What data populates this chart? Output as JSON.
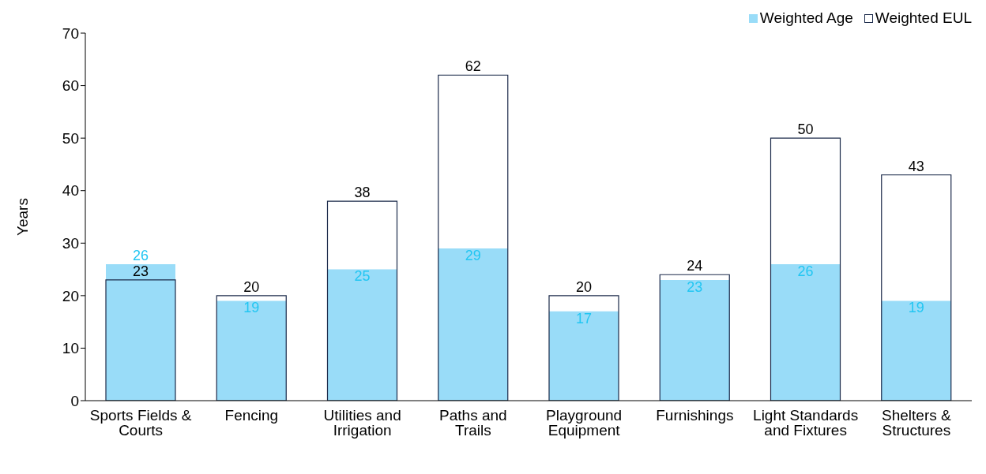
{
  "chart_data": {
    "type": "bar",
    "ylabel": "Years",
    "categories": [
      "Sports Fields & Courts",
      "Fencing",
      "Utilities and Irrigation",
      "Paths and Trails",
      "Playground Equipment",
      "Furnishings",
      "Light Standards and Fixtures",
      "Shelters & Structures"
    ],
    "series": [
      {
        "name": "Weighted Age",
        "color": "#99dcf8",
        "values": [
          26,
          19,
          25,
          29,
          17,
          23,
          26,
          19
        ]
      },
      {
        "name": "Weighted EUL",
        "color": "#1b2a4a",
        "values": [
          23,
          20,
          38,
          62,
          20,
          24,
          50,
          43
        ]
      }
    ],
    "ylim": [
      0,
      70
    ],
    "yticks": [
      0,
      10,
      20,
      30,
      40,
      50,
      60,
      70
    ],
    "grid": false,
    "legend": "top right",
    "data_labels": true
  }
}
